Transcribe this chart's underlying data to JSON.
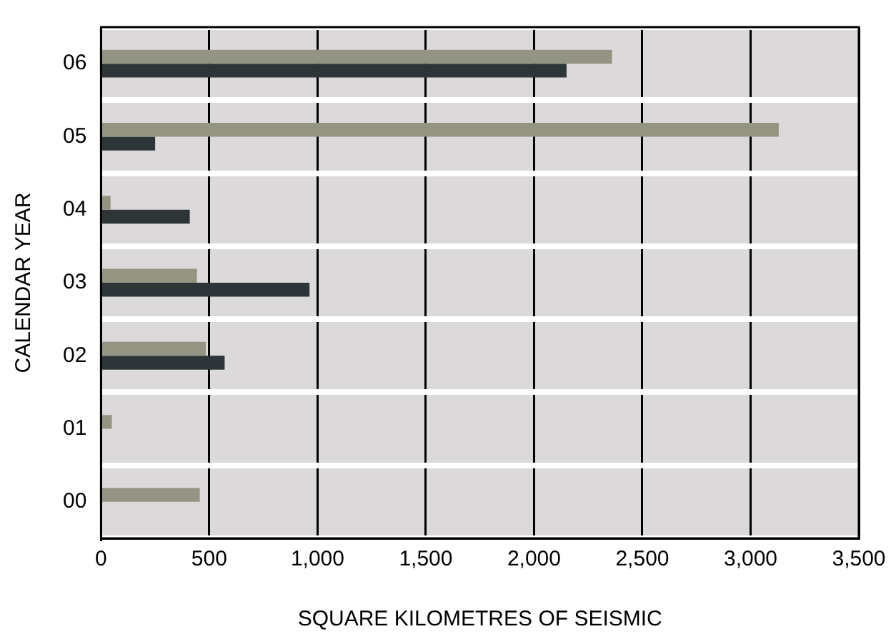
{
  "chart_data": {
    "type": "bar",
    "orientation": "horizontal",
    "xlabel": "SQUARE KILOMETRES OF SEISMIC",
    "ylabel": "CALENDAR YEAR",
    "categories": [
      "06",
      "05",
      "04",
      "03",
      "02",
      "01",
      "00"
    ],
    "series": [
      {
        "color": "#949483",
        "values": [
          2360,
          3130,
          44,
          443,
          484,
          50,
          456
        ]
      },
      {
        "color": "#2d3538",
        "values": [
          2150,
          250,
          410,
          963,
          571,
          null,
          null
        ]
      }
    ],
    "xlim": [
      0,
      3500
    ],
    "xticks": [
      0,
      {
        "value": 500,
        "label": "500"
      },
      {
        "value": 1000,
        "label": "1,000"
      },
      {
        "value": 1500,
        "label": "1,500"
      },
      {
        "value": 2000,
        "label": "2,000"
      },
      {
        "value": 2500,
        "label": "2,500"
      },
      {
        "value": 3000,
        "label": "3,000"
      },
      {
        "value": 3500,
        "label": "3,500"
      }
    ],
    "grid": true,
    "legend": false
  }
}
